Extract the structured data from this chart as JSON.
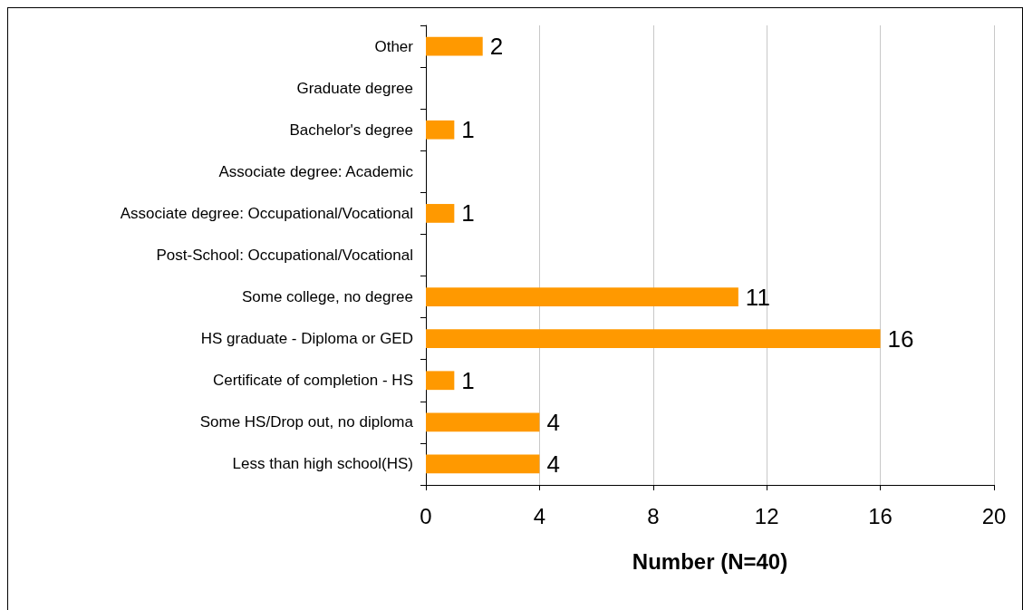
{
  "chart_data": {
    "type": "bar",
    "orientation": "horizontal",
    "xlabel": "Number (N=40)",
    "categories": [
      "Other",
      "Graduate degree",
      "Bachelor's degree",
      "Associate degree: Academic",
      "Associate degree: Occupational/Vocational",
      "Post-School: Occupational/Vocational",
      "Some college, no degree",
      "HS graduate - Diploma or GED",
      "Certificate of completion - HS",
      "Some HS/Drop out, no diploma",
      "Less than high school(HS)"
    ],
    "values": [
      2,
      0,
      1,
      0,
      1,
      0,
      11,
      16,
      1,
      4,
      4
    ],
    "value_labels": [
      "2",
      null,
      "1",
      null,
      "1",
      null,
      "11",
      "16",
      "1",
      "4",
      "4"
    ],
    "color": "#ff9900",
    "xlim": [
      0,
      20
    ],
    "xticks": [
      0,
      4,
      8,
      12,
      16,
      20
    ],
    "grid": "x"
  }
}
